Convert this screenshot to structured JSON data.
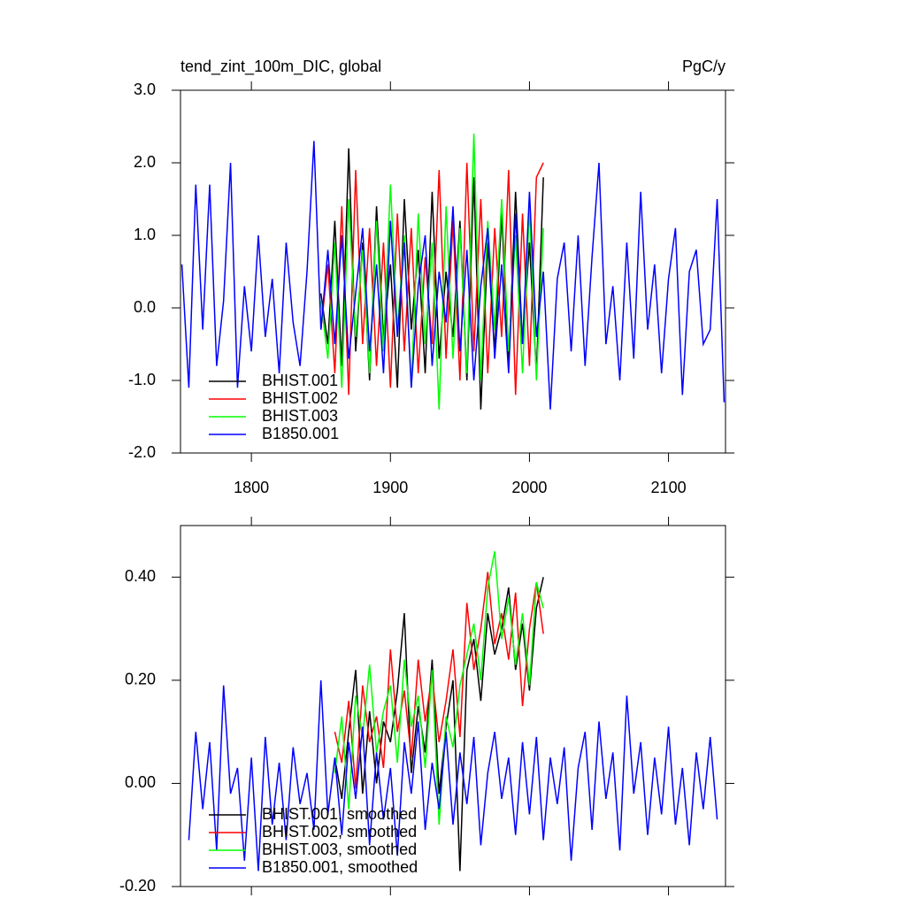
{
  "chart_data": [
    {
      "type": "line",
      "title": "tend_zint_100m_DIC, global",
      "subtitle": "PgC/y",
      "xlim": [
        1749,
        2141
      ],
      "xticks": [
        1800,
        1900,
        2000,
        2100
      ],
      "ylim": [
        -2,
        3
      ],
      "yticks": [
        {
          "value": -2,
          "label": "-2.0"
        },
        {
          "value": -1,
          "label": "-1.0"
        },
        {
          "value": 0,
          "label": "0.0"
        },
        {
          "value": 1,
          "label": "1.0"
        },
        {
          "value": 2,
          "label": "2.0"
        },
        {
          "value": 3,
          "label": "3.0"
        }
      ],
      "series": [
        {
          "name": "BHIST.001",
          "color": "#000000",
          "x": [
            1850,
            1855,
            1860,
            1865,
            1870,
            1875,
            1880,
            1885,
            1890,
            1895,
            1900,
            1905,
            1910,
            1915,
            1920,
            1925,
            1930,
            1935,
            1940,
            1945,
            1950,
            1955,
            1960,
            1965,
            1970,
            1975,
            1980,
            1985,
            1990,
            1995,
            2000,
            2005,
            2010
          ],
          "values": [
            0.2,
            -0.5,
            1.2,
            -0.8,
            2.2,
            -0.6,
            0.9,
            -1.0,
            1.4,
            -0.4,
            0.6,
            -1.1,
            1.5,
            -0.3,
            0.8,
            -0.9,
            1.6,
            -0.7,
            0.5,
            -0.4,
            1.2,
            -1.0,
            1.8,
            -1.4,
            0.9,
            -0.6,
            1.3,
            -0.8,
            1.6,
            -0.5,
            0.9,
            -0.9,
            1.8
          ]
        },
        {
          "name": "BHIST.002",
          "color": "#ff0000",
          "x": [
            1850,
            1855,
            1860,
            1865,
            1870,
            1875,
            1880,
            1885,
            1890,
            1895,
            1900,
            1905,
            1910,
            1915,
            1920,
            1925,
            1930,
            1935,
            1940,
            1945,
            1950,
            1955,
            1960,
            1965,
            1970,
            1975,
            1980,
            1985,
            1990,
            1995,
            2000,
            2005,
            2010
          ],
          "values": [
            -0.3,
            0.6,
            -0.9,
            1.4,
            -1.2,
            1.9,
            -0.5,
            1.1,
            -0.8,
            0.9,
            -1.1,
            1.3,
            -0.6,
            1.1,
            -0.9,
            0.7,
            -0.5,
            1.9,
            -0.7,
            1.2,
            -1.0,
            2.0,
            -0.6,
            1.5,
            -0.9,
            1.1,
            -0.4,
            1.9,
            -1.2,
            1.3,
            -0.8,
            1.8,
            2.0
          ]
        },
        {
          "name": "BHIST.003",
          "color": "#00ff00",
          "x": [
            1850,
            1855,
            1860,
            1865,
            1870,
            1875,
            1880,
            1885,
            1890,
            1895,
            1900,
            1905,
            1910,
            1915,
            1920,
            1925,
            1930,
            1935,
            1940,
            1945,
            1950,
            1955,
            1960,
            1965,
            1970,
            1975,
            1980,
            1985,
            1990,
            1995,
            2000,
            2005,
            2010
          ],
          "values": [
            0.1,
            -0.7,
            0.9,
            -1.1,
            1.5,
            -0.4,
            0.8,
            -0.9,
            1.2,
            -0.6,
            1.7,
            -0.3,
            1.0,
            -1.1,
            1.3,
            -0.5,
            0.9,
            -1.4,
            1.4,
            -0.7,
            1.1,
            -0.9,
            2.4,
            -1.0,
            1.2,
            -0.3,
            1.5,
            -0.6,
            1.0,
            -0.9,
            1.4,
            -1.0,
            1.1
          ]
        },
        {
          "name": "B1850.001",
          "color": "#0000ff",
          "x": [
            1750,
            1755,
            1760,
            1765,
            1770,
            1775,
            1780,
            1785,
            1790,
            1795,
            1800,
            1805,
            1810,
            1815,
            1820,
            1825,
            1830,
            1835,
            1840,
            1845,
            1850,
            1855,
            1860,
            1865,
            1870,
            1875,
            1880,
            1885,
            1890,
            1895,
            1900,
            1905,
            1910,
            1915,
            1920,
            1925,
            1930,
            1935,
            1940,
            1945,
            1950,
            1955,
            1960,
            1965,
            1970,
            1975,
            1980,
            1985,
            1990,
            1995,
            2000,
            2005,
            2010,
            2015,
            2020,
            2025,
            2030,
            2035,
            2040,
            2045,
            2050,
            2055,
            2060,
            2065,
            2070,
            2075,
            2080,
            2085,
            2090,
            2095,
            2100,
            2105,
            2110,
            2115,
            2120,
            2125,
            2130,
            2135,
            2140
          ],
          "values": [
            0.6,
            -1.1,
            1.7,
            -0.3,
            1.7,
            -0.8,
            0.1,
            2.0,
            -1.1,
            0.3,
            -0.6,
            1.0,
            -0.4,
            0.4,
            -0.9,
            0.9,
            -0.2,
            -0.8,
            0.5,
            2.3,
            -0.3,
            0.8,
            -0.5,
            1.0,
            -0.7,
            0.2,
            1.1,
            -0.6,
            0.6,
            -0.9,
            1.2,
            -0.4,
            0.9,
            -1.1,
            0.3,
            1.0,
            -0.8,
            0.5,
            -0.2,
            1.4,
            -0.6,
            0.8,
            -1.0,
            0.3,
            1.1,
            -0.7,
            0.6,
            -0.9,
            1.3,
            -0.5,
            1.6,
            -0.4,
            0.5,
            -1.4,
            0.4,
            0.9,
            -0.6,
            1.0,
            -0.8,
            0.7,
            2.0,
            -0.5,
            0.3,
            -1.0,
            0.9,
            -0.7,
            1.6,
            -0.3,
            0.6,
            -0.9,
            0.4,
            1.1,
            -1.2,
            0.5,
            0.8,
            -0.5,
            -0.3,
            1.5,
            -1.3
          ]
        }
      ]
    },
    {
      "type": "line",
      "xlim": [
        1749,
        2141
      ],
      "xticks": [
        1800,
        1900,
        2000,
        2100
      ],
      "ylim": [
        -0.2,
        0.5
      ],
      "yticks": [
        {
          "value": -0.2,
          "label": "-0.20"
        },
        {
          "value": 0,
          "label": "0.00"
        },
        {
          "value": 0.2,
          "label": "0.20"
        },
        {
          "value": 0.4,
          "label": "0.40"
        }
      ],
      "series": [
        {
          "name": "BHIST.001, smoothed",
          "color": "#000000",
          "x": [
            1860,
            1865,
            1870,
            1875,
            1880,
            1885,
            1890,
            1895,
            1900,
            1905,
            1910,
            1915,
            1920,
            1925,
            1930,
            1935,
            1940,
            1945,
            1950,
            1955,
            1960,
            1965,
            1970,
            1975,
            1980,
            1985,
            1990,
            1995,
            2000,
            2005,
            2010
          ],
          "values": [
            0.05,
            -0.03,
            0.1,
            0.22,
            -0.02,
            0.14,
            0.0,
            0.12,
            0.08,
            0.18,
            0.33,
            0.02,
            0.15,
            0.06,
            0.24,
            -0.02,
            0.11,
            0.2,
            -0.17,
            0.22,
            0.28,
            0.16,
            0.33,
            0.25,
            0.3,
            0.38,
            0.22,
            0.31,
            0.18,
            0.34,
            0.4
          ]
        },
        {
          "name": "BHIST.002, smoothed",
          "color": "#ff0000",
          "x": [
            1860,
            1865,
            1870,
            1875,
            1880,
            1885,
            1890,
            1895,
            1900,
            1905,
            1910,
            1915,
            1920,
            1925,
            1930,
            1935,
            1940,
            1945,
            1950,
            1955,
            1960,
            1965,
            1970,
            1975,
            1980,
            1985,
            1990,
            1995,
            2000,
            2005,
            2010
          ],
          "values": [
            0.1,
            0.04,
            0.16,
            -0.01,
            0.19,
            0.08,
            0.13,
            0.03,
            0.26,
            0.1,
            0.18,
            0.05,
            0.24,
            0.12,
            0.21,
            0.08,
            0.16,
            0.26,
            0.09,
            0.35,
            0.22,
            0.3,
            0.41,
            0.27,
            0.33,
            0.24,
            0.37,
            0.15,
            0.3,
            0.39,
            0.29
          ]
        },
        {
          "name": "BHIST.003, smoothed",
          "color": "#00ff00",
          "x": [
            1860,
            1865,
            1870,
            1875,
            1880,
            1885,
            1890,
            1895,
            1900,
            1905,
            1910,
            1915,
            1920,
            1925,
            1930,
            1935,
            1940,
            1945,
            1950,
            1955,
            1960,
            1965,
            1970,
            1975,
            1980,
            1985,
            1990,
            1995,
            2000,
            2005,
            2010
          ],
          "values": [
            0.02,
            0.13,
            -0.05,
            0.17,
            0.09,
            0.23,
            0.06,
            0.14,
            0.19,
            0.04,
            0.24,
            0.11,
            0.17,
            0.03,
            0.22,
            -0.08,
            0.13,
            0.07,
            0.19,
            0.25,
            0.31,
            0.2,
            0.38,
            0.45,
            0.28,
            0.36,
            0.23,
            0.33,
            0.19,
            0.39,
            0.34
          ]
        },
        {
          "name": "B1850.001, smoothed",
          "color": "#0000ff",
          "x": [
            1755,
            1760,
            1765,
            1770,
            1775,
            1780,
            1785,
            1790,
            1795,
            1800,
            1805,
            1810,
            1815,
            1820,
            1825,
            1830,
            1835,
            1840,
            1845,
            1850,
            1855,
            1860,
            1865,
            1870,
            1875,
            1880,
            1885,
            1890,
            1895,
            1900,
            1905,
            1910,
            1915,
            1920,
            1925,
            1930,
            1935,
            1940,
            1945,
            1950,
            1955,
            1960,
            1965,
            1970,
            1975,
            1980,
            1985,
            1990,
            1995,
            2000,
            2005,
            2010,
            2015,
            2020,
            2025,
            2030,
            2035,
            2040,
            2045,
            2050,
            2055,
            2060,
            2065,
            2070,
            2075,
            2080,
            2085,
            2090,
            2095,
            2100,
            2105,
            2110,
            2115,
            2120,
            2125,
            2130,
            2135
          ],
          "values": [
            -0.11,
            0.1,
            -0.05,
            0.08,
            -0.13,
            0.19,
            -0.02,
            0.03,
            -0.15,
            0.05,
            -0.17,
            0.09,
            -0.08,
            0.04,
            -0.11,
            0.07,
            -0.04,
            0.02,
            -0.09,
            0.2,
            -0.06,
            0.05,
            -0.1,
            0.08,
            -0.03,
            0.11,
            -0.12,
            0.06,
            -0.07,
            0.03,
            -0.14,
            0.08,
            -0.02,
            0.12,
            -0.09,
            0.04,
            -0.05,
            0.1,
            -0.08,
            0.06,
            -0.04,
            0.09,
            -0.12,
            0.02,
            0.1,
            -0.03,
            0.05,
            -0.1,
            0.08,
            -0.06,
            0.09,
            -0.11,
            0.05,
            -0.04,
            0.07,
            -0.15,
            0.03,
            0.1,
            -0.09,
            0.12,
            -0.03,
            0.06,
            -0.13,
            0.17,
            -0.02,
            0.08,
            -0.1,
            0.05,
            -0.06,
            0.11,
            -0.08,
            0.03,
            -0.12,
            0.06,
            -0.05,
            0.09,
            -0.07
          ]
        }
      ]
    }
  ]
}
